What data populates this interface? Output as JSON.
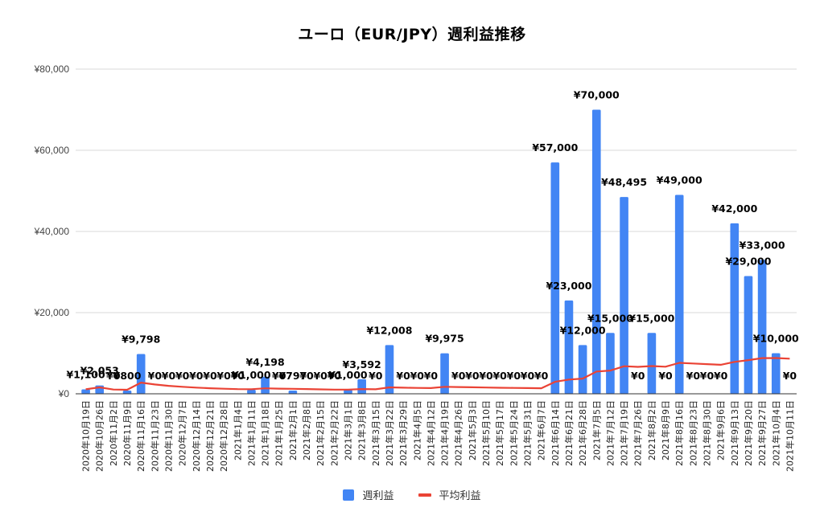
{
  "chart_data": {
    "type": "bar",
    "title": "ユーロ（EUR/JPY）週利益推移",
    "xlabel": "",
    "ylabel": "",
    "ylim": [
      0,
      80000
    ],
    "yticks": [
      0,
      20000,
      40000,
      60000,
      80000
    ],
    "ytick_labels": [
      "¥0",
      "¥20,000",
      "¥40,000",
      "¥60,000",
      "¥80,000"
    ],
    "grid": true,
    "legend_position": "bottom",
    "colors": {
      "bar": "#4285f4",
      "line": "#ea4335"
    },
    "categories": [
      "2020年10月19日",
      "2020年10月26日",
      "2020年11月2日",
      "2020年11月9日",
      "2020年11月16日",
      "2020年11月23日",
      "2020年11月30日",
      "2020年12月7日",
      "2020年12月14日",
      "2020年12月21日",
      "2020年12月28日",
      "2021年1月4日",
      "2021年1月11日",
      "2021年1月18日",
      "2021年1月25日",
      "2021年2月1日",
      "2021年2月8日",
      "2021年2月15日",
      "2021年2月22日",
      "2021年3月1日",
      "2021年3月8日",
      "2021年3月15日",
      "2021年3月22日",
      "2021年3月29日",
      "2021年4月5日",
      "2021年4月12日",
      "2021年4月19日",
      "2021年4月26日",
      "2021年5月3日",
      "2021年5月10日",
      "2021年5月17日",
      "2021年5月24日",
      "2021年5月31日",
      "2021年6月7日",
      "2021年6月14日",
      "2021年6月21日",
      "2021年6月28日",
      "2021年7月5日",
      "2021年7月12日",
      "2021年7月19日",
      "2021年7月26日",
      "2021年8月2日",
      "2021年8月9日",
      "2021年8月16日",
      "2021年8月23日",
      "2021年8月30日",
      "2021年9月6日",
      "2021年9月13日",
      "2021年9月20日",
      "2021年9月27日",
      "2021年10月4日",
      "2021年10月11日"
    ],
    "series": [
      {
        "name": "週利益",
        "type": "bar",
        "values": [
          1100,
          2053,
          0,
          800,
          9798,
          0,
          0,
          0,
          0,
          0,
          0,
          0,
          1000,
          4198,
          0,
          797,
          0,
          0,
          0,
          1000,
          3592,
          0,
          12008,
          0,
          0,
          0,
          9975,
          0,
          0,
          0,
          0,
          0,
          0,
          0,
          57000,
          23000,
          12000,
          70000,
          15000,
          48495,
          0,
          15000,
          0,
          49000,
          0,
          0,
          0,
          42000,
          29000,
          33000,
          10000,
          0
        ],
        "labels": [
          "¥1,100",
          "¥2,053",
          "¥0",
          "¥800",
          "¥9,798",
          "¥0",
          "¥0",
          "¥0",
          "¥0",
          "¥0",
          "¥0",
          "¥0",
          "¥1,000",
          "¥4,198",
          "¥0",
          "¥797",
          "¥0",
          "¥0",
          "¥0",
          "¥1,000",
          "¥3,592",
          "¥0",
          "¥12,008",
          "¥0",
          "¥0",
          "¥0",
          "¥9,975",
          "¥0",
          "¥0",
          "¥0",
          "¥0",
          "¥0",
          "¥0",
          "¥0",
          "¥57,000",
          "¥23,000",
          "¥12,000",
          "¥70,000",
          "¥15,000",
          "¥48,495",
          "¥0",
          "¥15,000",
          "¥0",
          "¥49,000",
          "¥0",
          "¥0",
          "¥0",
          "¥42,000",
          "¥29,000",
          "¥33,000",
          "¥10,000",
          "¥0"
        ]
      },
      {
        "name": "平均利益",
        "type": "line",
        "values": [
          1100,
          1577,
          1051,
          988,
          2750,
          2292,
          1964,
          1719,
          1528,
          1375,
          1250,
          1146,
          1135,
          1354,
          1263,
          1234,
          1162,
          1097,
          1039,
          1037,
          1159,
          1106,
          1580,
          1514,
          1454,
          1398,
          1716,
          1654,
          1597,
          1544,
          1494,
          1448,
          1404,
          1362,
          2952,
          3509,
          3738,
          5482,
          5726,
          6795,
          6630,
          6829,
          6670,
          7632,
          7463,
          7300,
          7145,
          7871,
          8302,
          8796,
          8820,
          8650
        ]
      }
    ]
  },
  "legend": {
    "bar_label": "週利益",
    "line_label": "平均利益"
  }
}
